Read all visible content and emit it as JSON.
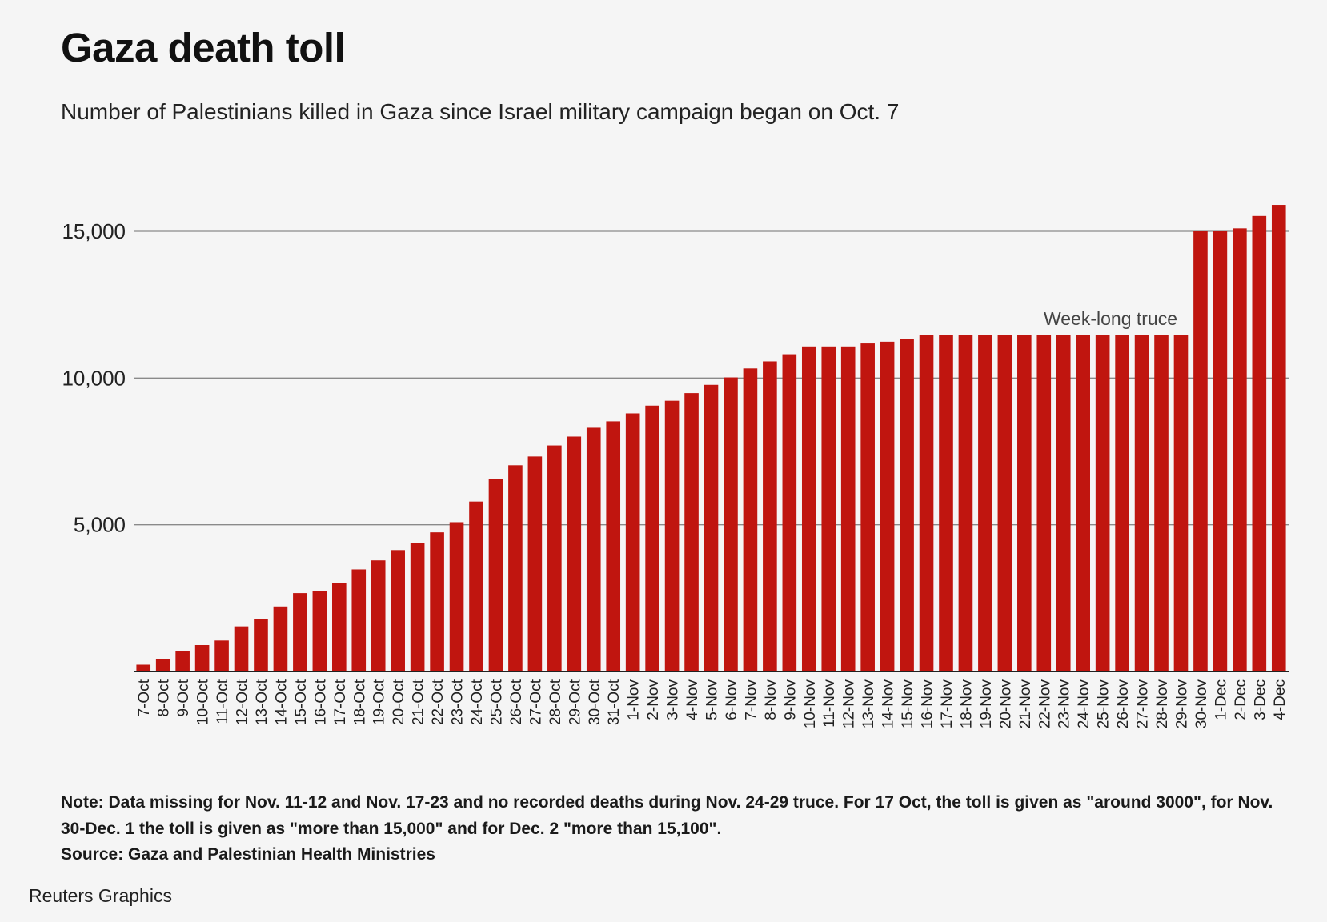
{
  "title": "Gaza death toll",
  "subtitle": "Number of Palestinians killed in Gaza since Israel military campaign began on Oct. 7",
  "note": "Note: Data missing for Nov. 11-12 and Nov. 17-23 and no recorded deaths during Nov. 24-29 truce. For 17 Oct, the toll is given as \"around 3000\", for Nov. 30-Dec. 1 the toll is given as \"more than 15,000\" and for Dec. 2 \"more than 15,100\".",
  "source": "Source: Gaza and Palestinian Health Ministries",
  "brand": "Reuters Graphics",
  "colors": {
    "bar": "#c0150f",
    "grid": "#8a8a8a",
    "axis": "#222222",
    "background": "#f5f5f5"
  },
  "chart_data": {
    "type": "bar",
    "title": "Gaza death toll",
    "xlabel": "",
    "ylabel": "",
    "ylim": [
      0,
      16000
    ],
    "yticks": [
      5000,
      10000,
      15000
    ],
    "ytick_labels": [
      "5,000",
      "10,000",
      "15,000"
    ],
    "grid": true,
    "annotations": [
      {
        "text": "Week-long truce",
        "category": "28-Nov"
      }
    ],
    "categories": [
      "7-Oct",
      "8-Oct",
      "9-Oct",
      "10-Oct",
      "11-Oct",
      "12-Oct",
      "13-Oct",
      "14-Oct",
      "15-Oct",
      "16-Oct",
      "17-Oct",
      "18-Oct",
      "19-Oct",
      "20-Oct",
      "21-Oct",
      "22-Oct",
      "23-Oct",
      "24-Oct",
      "25-Oct",
      "26-Oct",
      "27-Oct",
      "28-Oct",
      "29-Oct",
      "30-Oct",
      "31-Oct",
      "1-Nov",
      "2-Nov",
      "3-Nov",
      "4-Nov",
      "5-Nov",
      "6-Nov",
      "7-Nov",
      "8-Nov",
      "9-Nov",
      "10-Nov",
      "11-Nov",
      "12-Nov",
      "13-Nov",
      "14-Nov",
      "15-Nov",
      "16-Nov",
      "17-Nov",
      "18-Nov",
      "19-Nov",
      "20-Nov",
      "21-Nov",
      "22-Nov",
      "23-Nov",
      "24-Nov",
      "25-Nov",
      "26-Nov",
      "27-Nov",
      "28-Nov",
      "29-Nov",
      "30-Nov",
      "1-Dec",
      "2-Dec",
      "3-Dec",
      "4-Dec"
    ],
    "values": [
      232,
      413,
      687,
      900,
      1055,
      1537,
      1799,
      2215,
      2670,
      2750,
      3000,
      3478,
      3785,
      4137,
      4385,
      4741,
      5087,
      5791,
      6546,
      7028,
      7326,
      7703,
      8005,
      8306,
      8525,
      8796,
      9061,
      9227,
      9488,
      9770,
      10022,
      10328,
      10569,
      10812,
      11078,
      11078,
      11078,
      11180,
      11240,
      11320,
      11470,
      11470,
      11470,
      11470,
      11470,
      11470,
      11470,
      11470,
      11470,
      11470,
      11470,
      11470,
      11470,
      11470,
      15000,
      15000,
      15100,
      15523,
      15899
    ]
  }
}
